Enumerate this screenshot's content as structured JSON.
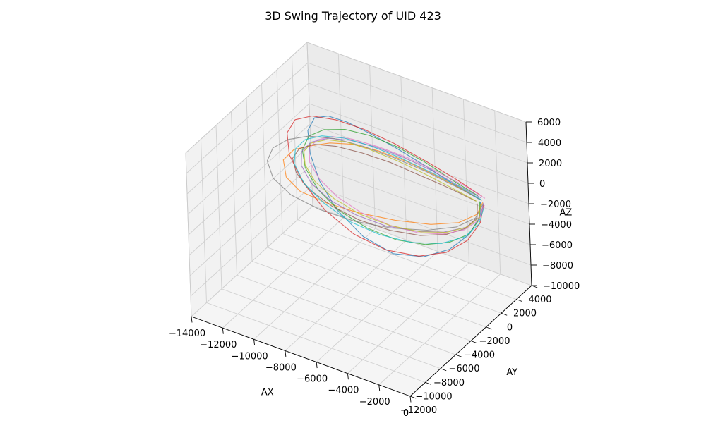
{
  "chart_data": {
    "type": "line",
    "projection": "3d",
    "title": "3D Swing Trajectory of UID 423",
    "xlabel": "AX",
    "ylabel": "AY",
    "zlabel": "AZ",
    "xlim": [
      -14000,
      0
    ],
    "ylim": [
      -12000,
      4000
    ],
    "zlim": [
      -10000,
      6000
    ],
    "xticks": [
      -14000,
      -12000,
      -10000,
      -8000,
      -6000,
      -4000,
      -2000,
      0
    ],
    "yticks": [
      -12000,
      -10000,
      -8000,
      -6000,
      -4000,
      -2000,
      0,
      2000,
      4000
    ],
    "zticks": [
      -10000,
      -8000,
      -6000,
      -4000,
      -2000,
      0,
      2000,
      4000,
      6000
    ],
    "xtick_labels": [
      "−14000",
      "−12000",
      "−10000",
      "−8000",
      "−6000",
      "−4000",
      "−2000",
      "0"
    ],
    "ytick_labels": [
      "−12000",
      "−10000",
      "−8000",
      "−6000",
      "−4000",
      "−2000",
      "0",
      "2000",
      "4000"
    ],
    "ztick_labels": [
      "−10000",
      "−8000",
      "−6000",
      "−4000",
      "−2000",
      "0",
      "2000",
      "4000",
      "6000"
    ],
    "grid": true,
    "legend": "none",
    "colors": [
      "#1f77b4",
      "#ff7f0e",
      "#2ca02c",
      "#d62728",
      "#9467bd",
      "#8c564b",
      "#e377c2",
      "#7f7f7f",
      "#bcbd22",
      "#17becf"
    ],
    "series": [
      {
        "x": [
          -1200,
          -2600,
          -4200,
          -5800,
          -7300,
          -8600,
          -9600,
          -10300,
          -10600,
          -10400,
          -9800,
          -8800,
          -7300,
          -5600,
          -3900,
          -2500,
          -1500,
          -1000,
          -1100
        ],
        "y": [
          0,
          -200,
          -600,
          -1100,
          -1500,
          -1900,
          -2300,
          -2700,
          -3000,
          -3200,
          -3300,
          -3200,
          -2900,
          -2500,
          -2000,
          -1400,
          -800,
          -300,
          0
        ],
        "z": [
          500,
          1200,
          2400,
          3600,
          4500,
          5200,
          5500,
          5200,
          4000,
          2000,
          -300,
          -2600,
          -4600,
          -5600,
          -5300,
          -4200,
          -2600,
          -900,
          300
        ]
      },
      {
        "x": [
          -1100,
          -2300,
          -3900,
          -5500,
          -7000,
          -8400,
          -9600,
          -10600,
          -11500,
          -12100,
          -11900,
          -11100,
          -9600,
          -7700,
          -5600,
          -3600,
          -2100,
          -1200,
          -1000
        ],
        "y": [
          200,
          0,
          -300,
          -700,
          -1200,
          -1700,
          -2200,
          -2700,
          -3100,
          -3300,
          -3400,
          -3300,
          -3000,
          -2600,
          -2100,
          -1500,
          -900,
          -300,
          100
        ],
        "z": [
          300,
          900,
          1600,
          2300,
          2800,
          3000,
          2800,
          2300,
          1700,
          500,
          -1000,
          -2000,
          -2500,
          -2700,
          -2600,
          -2300,
          -1700,
          -800,
          200
        ]
      },
      {
        "x": [
          -1300,
          -2800,
          -4400,
          -6000,
          -7500,
          -8800,
          -9900,
          -10700,
          -11000,
          -10800,
          -10000,
          -8800,
          -7200,
          -5500,
          -3900,
          -2600,
          -1600,
          -1100,
          -1200
        ],
        "y": [
          100,
          -100,
          -400,
          -800,
          -1300,
          -1800,
          -2300,
          -2700,
          -3000,
          -3100,
          -3100,
          -2900,
          -2600,
          -2200,
          -1700,
          -1200,
          -700,
          -200,
          100
        ],
        "z": [
          700,
          1500,
          2600,
          3500,
          4100,
          4300,
          4000,
          3200,
          1900,
          300,
          -1400,
          -2900,
          -3900,
          -4400,
          -4300,
          -3700,
          -2700,
          -1300,
          200
        ]
      },
      {
        "x": [
          -1000,
          -2400,
          -4100,
          -5900,
          -7600,
          -9100,
          -10400,
          -11300,
          -11700,
          -11500,
          -10700,
          -9400,
          -7800,
          -6000,
          -4200,
          -2700,
          -1600,
          -1000,
          -900
        ],
        "y": [
          0,
          -300,
          -800,
          -1300,
          -1800,
          -2300,
          -2800,
          -3200,
          -3500,
          -3700,
          -3700,
          -3500,
          -3100,
          -2600,
          -2000,
          -1400,
          -800,
          -300,
          0
        ],
        "z": [
          900,
          1900,
          3100,
          4200,
          5000,
          5400,
          5400,
          4800,
          3500,
          1600,
          -600,
          -2800,
          -4500,
          -5400,
          -5400,
          -4600,
          -3200,
          -1500,
          100
        ]
      },
      {
        "x": [
          -1200,
          -2500,
          -4000,
          -5600,
          -7100,
          -8500,
          -9700,
          -10600,
          -11100,
          -11100,
          -10500,
          -9400,
          -7900,
          -6200,
          -4500,
          -3000,
          -1800,
          -1100,
          -1000
        ],
        "y": [
          300,
          100,
          -300,
          -800,
          -1300,
          -1800,
          -2200,
          -2600,
          -2900,
          -3000,
          -3000,
          -2800,
          -2500,
          -2100,
          -1600,
          -1100,
          -600,
          -100,
          200
        ],
        "z": [
          400,
          1000,
          1900,
          2700,
          3200,
          3400,
          3200,
          2600,
          1600,
          300,
          -1100,
          -2300,
          -3100,
          -3500,
          -3400,
          -3000,
          -2200,
          -1100,
          100
        ]
      },
      {
        "x": [
          -1400,
          -2900,
          -4600,
          -6300,
          -7900,
          -9300,
          -10500,
          -11300,
          -11600,
          -11300,
          -10500,
          -9200,
          -7600,
          -5800,
          -4100,
          -2700,
          -1700,
          -1200,
          -1300
        ],
        "y": [
          0,
          -200,
          -600,
          -1000,
          -1500,
          -2000,
          -2400,
          -2800,
          -3100,
          -3300,
          -3300,
          -3100,
          -2800,
          -2400,
          -1900,
          -1300,
          -800,
          -300,
          0
        ],
        "z": [
          200,
          700,
          1300,
          1900,
          2300,
          2500,
          2300,
          1700,
          800,
          -300,
          -1500,
          -2500,
          -3200,
          -3500,
          -3400,
          -2900,
          -2100,
          -1100,
          0
        ]
      },
      {
        "x": [
          -900,
          -2100,
          -3700,
          -5300,
          -6900,
          -8300,
          -9400,
          -10200,
          -10600,
          -10500,
          -9900,
          -8900,
          -7500,
          -5900,
          -4300,
          -2900,
          -1800,
          -1100,
          -900
        ],
        "y": [
          200,
          0,
          -400,
          -900,
          -1400,
          -1900,
          -2300,
          -2700,
          -2900,
          -3100,
          -3100,
          -2900,
          -2600,
          -2200,
          -1800,
          -1300,
          -800,
          -300,
          100
        ],
        "z": [
          600,
          1300,
          2100,
          2900,
          3400,
          3700,
          3600,
          3100,
          2200,
          1000,
          -300,
          -1600,
          -2600,
          -3200,
          -3300,
          -3000,
          -2300,
          -1300,
          0
        ]
      },
      {
        "x": [
          -1100,
          -2600,
          -4300,
          -6100,
          -7800,
          -9400,
          -10800,
          -11900,
          -12700,
          -13000,
          -12600,
          -11600,
          -10000,
          -8000,
          -5900,
          -3900,
          -2300,
          -1300,
          -1000
        ],
        "y": [
          100,
          -100,
          -500,
          -1000,
          -1500,
          -2000,
          -2500,
          -3000,
          -3400,
          -3600,
          -3700,
          -3500,
          -3100,
          -2600,
          -2000,
          -1400,
          -800,
          -300,
          100
        ],
        "z": [
          400,
          1000,
          1800,
          2500,
          3000,
          3200,
          3000,
          2400,
          1400,
          100,
          -1300,
          -2500,
          -3300,
          -3700,
          -3600,
          -3100,
          -2300,
          -1200,
          0
        ]
      },
      {
        "x": [
          -1300,
          -2700,
          -4200,
          -5800,
          -7300,
          -8600,
          -9700,
          -10500,
          -10900,
          -10800,
          -10200,
          -9100,
          -7600,
          -5900,
          -4200,
          -2800,
          -1700,
          -1100,
          -1100
        ],
        "y": [
          -100,
          -300,
          -700,
          -1100,
          -1600,
          -2000,
          -2400,
          -2800,
          -3000,
          -3100,
          -3100,
          -2900,
          -2600,
          -2100,
          -1600,
          -1100,
          -600,
          -200,
          0
        ],
        "z": [
          300,
          900,
          1700,
          2400,
          3000,
          3300,
          3200,
          2700,
          1800,
          600,
          -700,
          -1900,
          -2800,
          -3300,
          -3300,
          -2900,
          -2100,
          -1100,
          100
        ]
      },
      {
        "x": [
          -1000,
          -2300,
          -3900,
          -5600,
          -7200,
          -8700,
          -9900,
          -10800,
          -11300,
          -11300,
          -10700,
          -9600,
          -8100,
          -6400,
          -4600,
          -3000,
          -1800,
          -1100,
          -900
        ],
        "y": [
          0,
          -200,
          -600,
          -1100,
          -1600,
          -2100,
          -2600,
          -3000,
          -3300,
          -3500,
          -3500,
          -3300,
          -3000,
          -2500,
          -2000,
          -1400,
          -800,
          -300,
          0
        ],
        "z": [
          500,
          1200,
          2000,
          2800,
          3400,
          3700,
          3600,
          3000,
          2000,
          700,
          -900,
          -2300,
          -3500,
          -4200,
          -4300,
          -3900,
          -3000,
          -1700,
          -200
        ]
      }
    ]
  }
}
